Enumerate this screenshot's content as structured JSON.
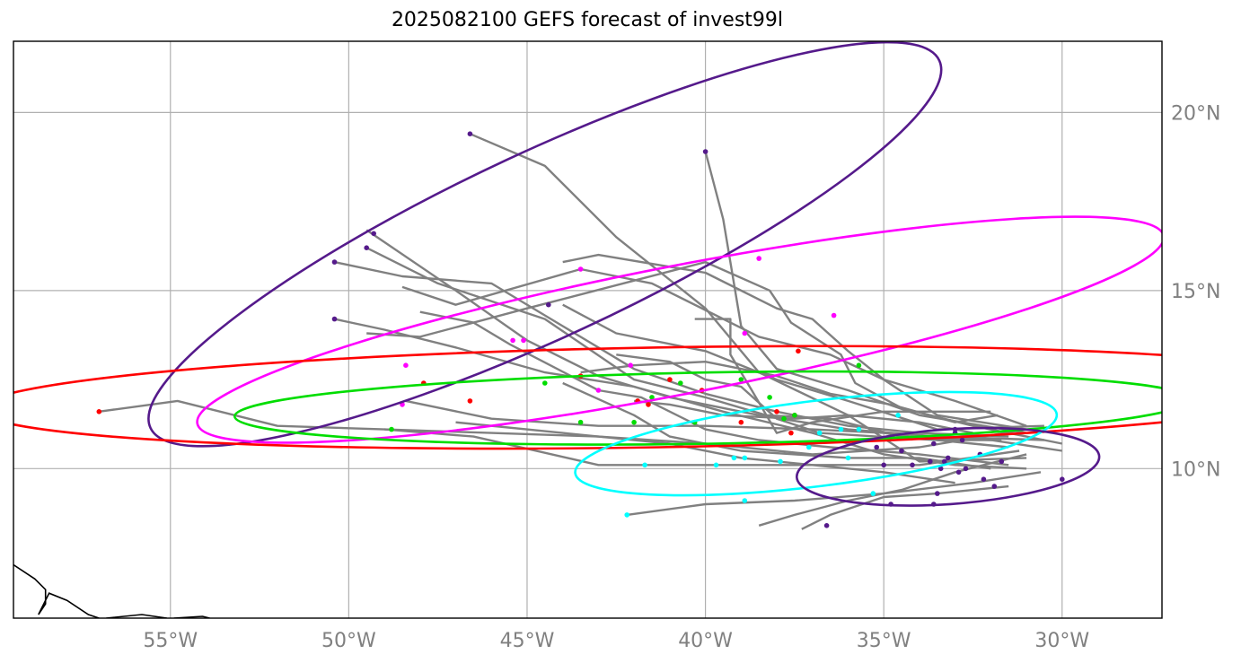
{
  "title": "2025082100 GEFS forecast of invest99l",
  "map": {
    "lon_range": [
      -59.4,
      -27.2
    ],
    "lat_range": [
      5.8,
      22.0
    ],
    "grid": true,
    "lon_ticks": [
      {
        "value": -55,
        "label": "55°W"
      },
      {
        "value": -50,
        "label": "50°W"
      },
      {
        "value": -45,
        "label": "45°W"
      },
      {
        "value": -40,
        "label": "40°W"
      },
      {
        "value": -35,
        "label": "35°W"
      },
      {
        "value": -30,
        "label": "30°W"
      }
    ],
    "lat_ticks": [
      {
        "value": 10,
        "label": "10°N"
      },
      {
        "value": 15,
        "label": "15°N"
      },
      {
        "value": 20,
        "label": "20°N"
      }
    ]
  },
  "colors": {
    "track": "#808080",
    "day1": "#00ffff",
    "day2": "#00dd00",
    "day3": "#ff0000",
    "day4": "#ff00ff",
    "day5": "#551a8b",
    "start": "#551a8b",
    "coast": "#000000"
  },
  "coastline": [
    [
      -59.4,
      7.3
    ],
    [
      -58.8,
      6.9
    ],
    [
      -58.5,
      6.6
    ],
    [
      -58.5,
      6.2
    ],
    [
      -58.7,
      5.9
    ],
    [
      -58.4,
      6.5
    ],
    [
      -57.9,
      6.3
    ],
    [
      -57.3,
      5.9
    ],
    [
      -57.0,
      5.8
    ]
  ],
  "coastline2": [
    [
      -56.8,
      5.8
    ],
    [
      -55.8,
      5.9
    ],
    [
      -55.1,
      5.8
    ]
  ],
  "coastline3": [
    [
      -54.9,
      5.8
    ],
    [
      -54.1,
      5.85
    ],
    [
      -53.9,
      5.8
    ]
  ],
  "tracks": [
    [
      [
        -31.0,
        11.1
      ],
      [
        -34.0,
        10.6
      ],
      [
        -37.0,
        10.4
      ],
      [
        -40.0,
        10.7
      ],
      [
        -43.0,
        10.9
      ],
      [
        -46.0,
        11.0
      ],
      [
        -49.0,
        11.1
      ],
      [
        -52.0,
        11.2
      ],
      [
        -54.8,
        11.9
      ],
      [
        -57.0,
        11.6
      ]
    ],
    [
      [
        -30.5,
        10.8
      ],
      [
        -33.5,
        10.9
      ],
      [
        -36.0,
        11.1
      ],
      [
        -38.5,
        11.5
      ],
      [
        -41.0,
        12.0
      ],
      [
        -43.0,
        12.6
      ],
      [
        -45.0,
        13.6
      ],
      [
        -47.0,
        15.0
      ],
      [
        -49.5,
        16.7
      ]
    ],
    [
      [
        -31.0,
        10.3
      ],
      [
        -34.0,
        10.2
      ],
      [
        -36.0,
        11.5
      ],
      [
        -38.5,
        12.7
      ],
      [
        -40.0,
        14.5
      ],
      [
        -42.5,
        16.5
      ],
      [
        -44.5,
        18.5
      ],
      [
        -46.6,
        19.4
      ]
    ],
    [
      [
        -31.0,
        11.0
      ],
      [
        -34.0,
        11.5
      ],
      [
        -36.0,
        12.2
      ],
      [
        -38.0,
        12.8
      ],
      [
        -39.0,
        14.0
      ],
      [
        -39.5,
        17.0
      ],
      [
        -40.0,
        18.9
      ]
    ],
    [
      [
        -30.0,
        10.5
      ],
      [
        -32.0,
        10.8
      ],
      [
        -34.5,
        10.9
      ],
      [
        -36.5,
        11.4
      ],
      [
        -38.3,
        11.5
      ],
      [
        -40.0,
        12.0
      ],
      [
        -42.0,
        12.5
      ],
      [
        -44.5,
        14.2
      ],
      [
        -47.5,
        15.2
      ],
      [
        -49.5,
        16.2
      ]
    ],
    [
      [
        -31.5,
        10.9
      ],
      [
        -34.0,
        11.0
      ],
      [
        -36.0,
        11.2
      ],
      [
        -38.0,
        11.6
      ],
      [
        -40.0,
        12.1
      ],
      [
        -42.0,
        12.8
      ],
      [
        -44.0,
        14.0
      ],
      [
        -46.0,
        15.2
      ],
      [
        -48.5,
        15.4
      ],
      [
        -50.4,
        15.8
      ]
    ],
    [
      [
        -31.0,
        10.0
      ],
      [
        -33.0,
        10.1
      ],
      [
        -35.0,
        10.4
      ],
      [
        -37.0,
        11.0
      ],
      [
        -39.5,
        11.6
      ],
      [
        -42.0,
        12.3
      ],
      [
        -44.5,
        12.7
      ],
      [
        -47.0,
        13.4
      ],
      [
        -49.0,
        13.9
      ],
      [
        -50.4,
        14.2
      ]
    ],
    [
      [
        -30.6,
        9.9
      ],
      [
        -32.5,
        9.6
      ],
      [
        -35.0,
        9.3
      ],
      [
        -37.5,
        9.1
      ],
      [
        -40.0,
        9.0
      ],
      [
        -42.2,
        8.7
      ]
    ],
    [
      [
        -31.2,
        10.5
      ],
      [
        -34.0,
        10.1
      ],
      [
        -37.0,
        10.1
      ],
      [
        -40.0,
        10.1
      ],
      [
        -43.0,
        10.1
      ],
      [
        -46.5,
        10.9
      ],
      [
        -49.0,
        11.1
      ]
    ],
    [
      [
        -30.5,
        11.2
      ],
      [
        -33.5,
        11.1
      ],
      [
        -36.0,
        11.9
      ],
      [
        -38.0,
        12.5
      ],
      [
        -40.0,
        13.3
      ],
      [
        -42.5,
        13.8
      ],
      [
        -44.0,
        14.6
      ]
    ],
    [
      [
        -31.0,
        11.1
      ],
      [
        -33.5,
        11.5
      ],
      [
        -35.0,
        12.5
      ],
      [
        -36.5,
        13.2
      ],
      [
        -38.5,
        13.7
      ],
      [
        -41.5,
        15.2
      ],
      [
        -43.5,
        15.6
      ],
      [
        -47.0,
        14.6
      ],
      [
        -48.5,
        15.1
      ]
    ],
    [
      [
        -31.5,
        10.6
      ],
      [
        -33.5,
        10.8
      ],
      [
        -35.0,
        11.0
      ],
      [
        -37.0,
        11.1
      ],
      [
        -40.0,
        11.2
      ],
      [
        -43.0,
        11.2
      ],
      [
        -46.0,
        11.4
      ],
      [
        -48.4,
        11.9
      ]
    ],
    [
      [
        -31.0,
        10.4
      ],
      [
        -33.0,
        9.9
      ],
      [
        -34.5,
        9.4
      ],
      [
        -36.0,
        9.1
      ],
      [
        -37.5,
        8.7
      ],
      [
        -38.5,
        8.4
      ]
    ],
    [
      [
        -31.5,
        9.5
      ],
      [
        -33.5,
        9.3
      ],
      [
        -35.0,
        9.2
      ],
      [
        -36.5,
        8.7
      ],
      [
        -37.3,
        8.3
      ]
    ],
    [
      [
        -30.0,
        10.7
      ],
      [
        -32.5,
        11.2
      ],
      [
        -34.5,
        11.7
      ],
      [
        -35.8,
        12.4
      ],
      [
        -36.2,
        13.2
      ],
      [
        -37.6,
        14.1
      ],
      [
        -38.2,
        15.0
      ],
      [
        -40.0,
        15.8
      ],
      [
        -45.0,
        14.5
      ],
      [
        -48.0,
        13.7
      ],
      [
        -49.5,
        13.8
      ]
    ],
    [
      [
        -31.0,
        11.2
      ],
      [
        -33.0,
        11.9
      ],
      [
        -35.0,
        12.5
      ],
      [
        -36.0,
        13.3
      ],
      [
        -37.0,
        14.2
      ],
      [
        -38.0,
        14.5
      ],
      [
        -40.0,
        15.5
      ],
      [
        -43.0,
        16.0
      ],
      [
        -44.0,
        15.8
      ]
    ],
    [
      [
        -31.7,
        10.8
      ],
      [
        -33.5,
        10.8
      ],
      [
        -35.2,
        10.9
      ],
      [
        -36.8,
        11.0
      ],
      [
        -38.0,
        11.4
      ],
      [
        -39.0,
        12.3
      ],
      [
        -40.0,
        12.5
      ],
      [
        -41.0,
        13.0
      ],
      [
        -42.5,
        13.2
      ]
    ],
    [
      [
        -32.0,
        10.0
      ],
      [
        -34.0,
        10.3
      ],
      [
        -36.0,
        10.3
      ],
      [
        -37.5,
        10.4
      ],
      [
        -39.0,
        10.5
      ],
      [
        -41.0,
        10.9
      ],
      [
        -42.0,
        11.5
      ],
      [
        -44.0,
        12.4
      ]
    ],
    [
      [
        -31.8,
        11.5
      ],
      [
        -33.0,
        11.3
      ],
      [
        -34.8,
        11.8
      ],
      [
        -36.5,
        12.1
      ],
      [
        -38.0,
        12.6
      ],
      [
        -40.0,
        13.0
      ],
      [
        -42.0,
        12.9
      ],
      [
        -43.5,
        12.7
      ]
    ],
    [
      [
        -33.0,
        9.6
      ],
      [
        -35.0,
        9.9
      ],
      [
        -37.0,
        10.1
      ],
      [
        -39.0,
        10.3
      ],
      [
        -41.0,
        10.7
      ],
      [
        -44.0,
        11.0
      ],
      [
        -47.0,
        11.3
      ]
    ],
    [
      [
        -31.5,
        10.1
      ],
      [
        -34.0,
        10.4
      ],
      [
        -36.5,
        10.6
      ],
      [
        -38.5,
        10.8
      ],
      [
        -40.0,
        11.1
      ],
      [
        -41.8,
        12.0
      ],
      [
        -43.0,
        12.2
      ],
      [
        -45.5,
        13.5
      ],
      [
        -46.5,
        14.1
      ],
      [
        -48.0,
        14.4
      ]
    ],
    [
      [
        -32.5,
        11.0
      ],
      [
        -34.0,
        11.3
      ],
      [
        -36.0,
        11.5
      ],
      [
        -37.5,
        11.4
      ],
      [
        -39.5,
        11.5
      ],
      [
        -41.0,
        11.8
      ],
      [
        -42.0,
        11.9
      ]
    ],
    [
      [
        -32.0,
        11.6
      ],
      [
        -35.0,
        11.6
      ],
      [
        -37.0,
        11.3
      ],
      [
        -38.0,
        11.0
      ],
      [
        -38.7,
        12.2
      ],
      [
        -39.3,
        13.2
      ],
      [
        -39.3,
        14.2
      ],
      [
        -40.3,
        14.2
      ]
    ]
  ],
  "ellipses": [
    {
      "key": "day5",
      "cx": -44.5,
      "cy": 16.3,
      "rx": 12.2,
      "ry": 2.6,
      "rot": -25
    },
    {
      "key": "day4",
      "cx": -40.7,
      "cy": 13.9,
      "rx": 13.8,
      "ry": 1.8,
      "rot": -11
    },
    {
      "key": "day3",
      "cx": -41.3,
      "cy": 12.0,
      "rx": 19.1,
      "ry": 1.4,
      "rot": -1
    },
    {
      "key": "day2",
      "cx": -39.8,
      "cy": 11.7,
      "rx": 13.4,
      "ry": 1.0,
      "rot": -1
    },
    {
      "key": "day1",
      "cx": -36.9,
      "cy": 10.7,
      "rx": 6.8,
      "ry": 1.2,
      "rot": -7
    },
    {
      "key": "start",
      "cx": -33.2,
      "cy": 10.05,
      "rx": 4.25,
      "ry": 1.05,
      "rot": -4
    }
  ],
  "points": [
    {
      "key": "day5",
      "pts": [
        [
          -46.6,
          19.4
        ],
        [
          -40.0,
          18.9
        ],
        [
          -49.3,
          16.6
        ],
        [
          -49.5,
          16.2
        ],
        [
          -50.4,
          15.8
        ],
        [
          -44.4,
          14.6
        ],
        [
          -50.4,
          14.2
        ],
        [
          -33.6,
          10.7
        ],
        [
          -32.8,
          10.8
        ],
        [
          -33.0,
          11.1
        ],
        [
          -33.7,
          10.2
        ],
        [
          -34.2,
          10.1
        ],
        [
          -35.0,
          10.1
        ],
        [
          -33.4,
          10.0
        ],
        [
          -33.2,
          10.3
        ],
        [
          -32.7,
          10.0
        ],
        [
          -32.3,
          10.4
        ],
        [
          -31.7,
          10.2
        ],
        [
          -31.9,
          9.5
        ],
        [
          -32.2,
          9.7
        ],
        [
          -33.5,
          9.3
        ],
        [
          -34.8,
          9.0
        ],
        [
          -36.6,
          8.4
        ],
        [
          -33.6,
          9.0
        ],
        [
          -35.2,
          10.6
        ],
        [
          -34.5,
          10.5
        ],
        [
          -33.0,
          11.0
        ],
        [
          -30.0,
          9.7
        ],
        [
          -32.9,
          9.9
        ],
        [
          -33.3,
          10.2
        ]
      ]
    },
    {
      "key": "day4",
      "pts": [
        [
          -43.5,
          15.6
        ],
        [
          -38.5,
          15.9
        ],
        [
          -36.4,
          14.3
        ],
        [
          -38.9,
          13.8
        ],
        [
          -45.4,
          13.6
        ],
        [
          -45.1,
          13.6
        ],
        [
          -48.4,
          12.9
        ],
        [
          -42.1,
          12.9
        ],
        [
          -48.5,
          11.8
        ],
        [
          -43.0,
          12.2
        ]
      ]
    },
    {
      "key": "day3",
      "pts": [
        [
          -57.0,
          11.6
        ],
        [
          -47.9,
          12.4
        ],
        [
          -46.6,
          11.9
        ],
        [
          -43.5,
          12.6
        ],
        [
          -41.0,
          12.5
        ],
        [
          -40.1,
          12.2
        ],
        [
          -41.9,
          11.9
        ],
        [
          -37.4,
          13.3
        ],
        [
          -37.5,
          11.5
        ],
        [
          -38.0,
          11.6
        ],
        [
          -37.6,
          11.0
        ],
        [
          -39.0,
          11.3
        ],
        [
          -41.6,
          11.8
        ]
      ]
    },
    {
      "key": "day2",
      "pts": [
        [
          -44.5,
          12.4
        ],
        [
          -42.0,
          11.3
        ],
        [
          -40.7,
          12.4
        ],
        [
          -41.5,
          12.0
        ],
        [
          -39.0,
          12.5
        ],
        [
          -38.2,
          12.0
        ],
        [
          -37.5,
          11.5
        ],
        [
          -43.5,
          11.3
        ],
        [
          -40.3,
          11.3
        ],
        [
          -35.7,
          12.9
        ],
        [
          -48.8,
          11.1
        ],
        [
          -37.8,
          11.4
        ]
      ]
    },
    {
      "key": "day1",
      "pts": [
        [
          -42.2,
          8.7
        ],
        [
          -41.7,
          10.1
        ],
        [
          -39.7,
          10.1
        ],
        [
          -39.2,
          10.3
        ],
        [
          -38.9,
          10.3
        ],
        [
          -38.9,
          9.1
        ],
        [
          -37.9,
          10.2
        ],
        [
          -37.1,
          10.6
        ],
        [
          -36.2,
          11.1
        ],
        [
          -35.7,
          11.1
        ],
        [
          -36.0,
          10.3
        ],
        [
          -35.3,
          9.3
        ],
        [
          -34.6,
          11.5
        ],
        [
          -36.8,
          11.0
        ]
      ]
    }
  ]
}
